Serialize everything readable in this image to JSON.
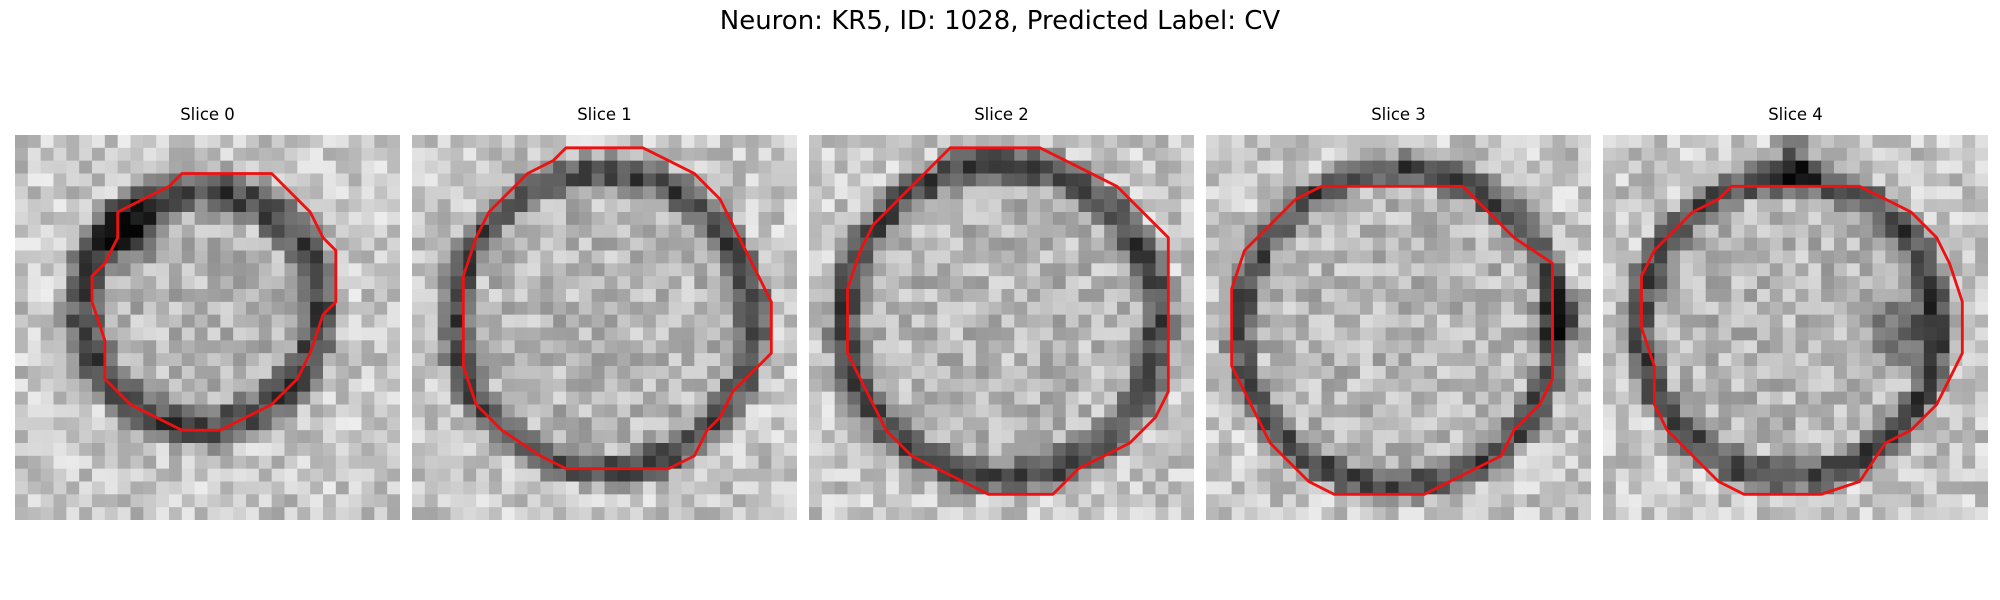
{
  "figure": {
    "title": "Neuron: KR5, ID: 1028, Predicted Label: CV"
  },
  "panels": [
    {
      "label": "Slice 0"
    },
    {
      "label": "Slice 1"
    },
    {
      "label": "Slice 2"
    },
    {
      "label": "Slice 3"
    },
    {
      "label": "Slice 4"
    }
  ],
  "colors": {
    "contour": "#ee1111",
    "background": "#ffffff"
  }
}
